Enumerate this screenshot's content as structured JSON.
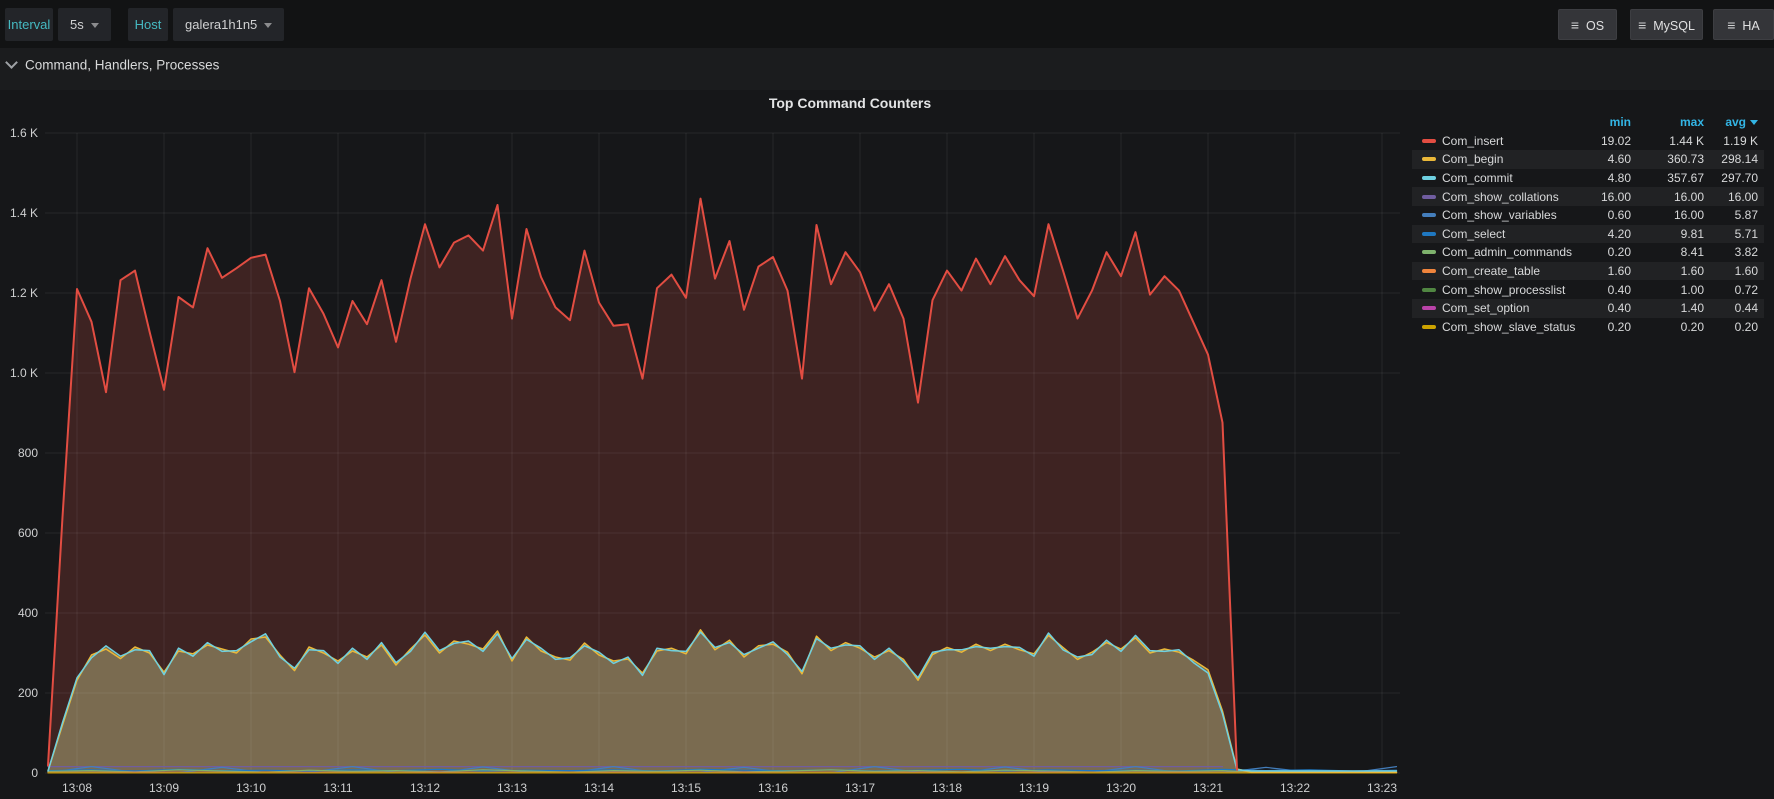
{
  "topbar": {
    "interval_label": "Interval",
    "interval_value": "5s",
    "host_label": "Host",
    "host_value": "galera1h1n5",
    "menu_buttons": [
      "OS",
      "MySQL",
      "HA"
    ]
  },
  "section": {
    "title": "Command, Handlers, Processes"
  },
  "panel": {
    "title": "Top Command Counters"
  },
  "legend": {
    "headers": [
      "min",
      "max",
      "avg"
    ],
    "sort_column": "avg"
  },
  "chart_data": {
    "type": "area",
    "title": "Top Command Counters",
    "grid": true,
    "legend_position": "right-table",
    "x_axis": {
      "tick_labels": [
        "13:08",
        "13:09",
        "13:10",
        "13:11",
        "13:12",
        "13:13",
        "13:14",
        "13:15",
        "13:16",
        "13:17",
        "13:18",
        "13:19",
        "13:20",
        "13:21",
        "13:22",
        "13:23"
      ],
      "tick_interval_s": 60
    },
    "y_axis": {
      "min": 0,
      "max": 1600,
      "tick_labels": [
        "0",
        "200",
        "400",
        "600",
        "800",
        "1.0 K",
        "1.2 K",
        "1.4 K",
        "1.6 K"
      ]
    },
    "series": [
      {
        "name": "Com_insert",
        "color": "#e24d42",
        "fill": "#3e2322",
        "legend": {
          "min": "19.02",
          "max": "1.44 K",
          "avg": "1.19 K"
        },
        "interval_s": 10,
        "start_s": -20,
        "values": [
          19,
          640,
          1210,
          1128,
          952,
          1232,
          1256,
          1104,
          958,
          1190,
          1164,
          1312,
          1238,
          1262,
          1288,
          1296,
          1180,
          1002,
          1212,
          1148,
          1064,
          1180,
          1122,
          1232,
          1078,
          1236,
          1372,
          1264,
          1326,
          1344,
          1306,
          1420,
          1136,
          1360,
          1240,
          1164,
          1132,
          1306,
          1176,
          1118,
          1122,
          986,
          1212,
          1246,
          1188,
          1436,
          1236,
          1330,
          1158,
          1266,
          1290,
          1206,
          986,
          1370,
          1222,
          1302,
          1252,
          1156,
          1222,
          1136,
          926,
          1182,
          1256,
          1206,
          1286,
          1222,
          1292,
          1232,
          1192,
          1372,
          1256,
          1136,
          1206,
          1302,
          1242,
          1352,
          1196,
          1242,
          1206,
          1126,
          1046,
          876,
          8,
          null,
          null,
          null,
          null,
          null,
          null,
          null,
          null,
          null,
          null,
          null,
          null
        ]
      },
      {
        "name": "Com_begin",
        "color": "#eab839",
        "fill": "#77684e",
        "legend": {
          "min": "4.60",
          "max": "360.73",
          "avg": "298.14"
        },
        "interval_s": 10,
        "start_s": -20,
        "values": [
          5,
          120,
          232,
          295,
          310,
          286,
          315,
          300,
          252,
          305,
          298,
          320,
          310,
          300,
          335,
          340,
          295,
          256,
          315,
          300,
          280,
          305,
          290,
          320,
          270,
          310,
          345,
          300,
          330,
          322,
          310,
          355,
          280,
          340,
          305,
          290,
          282,
          325,
          295,
          280,
          285,
          250,
          305,
          312,
          298,
          358,
          308,
          332,
          290,
          318,
          322,
          302,
          248,
          342,
          306,
          326,
          312,
          290,
          306,
          284,
          232,
          296,
          314,
          302,
          322,
          306,
          322,
          308,
          298,
          344,
          314,
          284,
          302,
          326,
          310,
          338,
          300,
          310,
          302,
          282,
          258,
          155,
          10,
          1.5,
          1.5,
          1.5,
          1.5,
          1.5,
          1.5,
          1.5,
          1.5,
          1.5,
          1.5,
          1.5
        ]
      },
      {
        "name": "Com_commit",
        "color": "#6ed0e0",
        "fill": "#7a6b50",
        "legend": {
          "min": "4.80",
          "max": "357.67",
          "avg": "297.70"
        },
        "interval_s": 10,
        "start_s": -20,
        "values": [
          5,
          126,
          238,
          288,
          318,
          292,
          308,
          306,
          246,
          312,
          292,
          326,
          304,
          306,
          328,
          348,
          290,
          262,
          308,
          306,
          274,
          312,
          284,
          326,
          276,
          304,
          352,
          306,
          324,
          330,
          304,
          348,
          286,
          334,
          312,
          284,
          288,
          318,
          302,
          274,
          290,
          244,
          312,
          306,
          304,
          352,
          314,
          326,
          296,
          312,
          328,
          296,
          254,
          336,
          312,
          320,
          318,
          284,
          312,
          278,
          238,
          302,
          308,
          308,
          316,
          312,
          316,
          314,
          292,
          350,
          308,
          290,
          296,
          332,
          304,
          344,
          306,
          304,
          308,
          276,
          250,
          148,
          8,
          5,
          5,
          5,
          5,
          5,
          5,
          5,
          5,
          5,
          5,
          5
        ]
      },
      {
        "name": "Com_show_collations",
        "color": "#705da0",
        "fill": null,
        "legend": {
          "min": "16.00",
          "max": "16.00",
          "avg": "16.00"
        },
        "interval_s": 30,
        "start_s": -20,
        "values": [
          16,
          16,
          16,
          16,
          16,
          16,
          16,
          16,
          16,
          16,
          16,
          16,
          16,
          16,
          16,
          16,
          16,
          16,
          16,
          16,
          16,
          16,
          16,
          16,
          16,
          16,
          16,
          16,
          null,
          null,
          null,
          null
        ]
      },
      {
        "name": "Com_show_variables",
        "color": "#447ebc",
        "fill": null,
        "legend": {
          "min": "0.60",
          "max": "16.00",
          "avg": "5.87"
        },
        "interval_s": 30,
        "start_s": -20,
        "values": [
          1,
          16,
          2,
          1,
          14,
          1,
          2,
          16,
          1,
          1,
          15,
          2,
          1,
          16,
          1,
          2,
          14,
          1,
          1,
          16,
          2,
          1,
          15,
          1,
          2,
          16,
          1,
          1,
          14,
          2,
          1,
          16
        ]
      },
      {
        "name": "Com_select",
        "color": "#1f78c1",
        "fill": null,
        "legend": {
          "min": "4.20",
          "max": "9.81",
          "avg": "5.71"
        },
        "interval_s": 30,
        "start_s": -20,
        "values": [
          6,
          8,
          5,
          9,
          6,
          7,
          5,
          8,
          6,
          9,
          5,
          7,
          6,
          8,
          5,
          9,
          7,
          6,
          8,
          5,
          7,
          9,
          5,
          8,
          6,
          7,
          5,
          9,
          6,
          8,
          5,
          7
        ]
      },
      {
        "name": "Com_admin_commands",
        "color": "#7eb26d",
        "fill": null,
        "legend": {
          "min": "0.20",
          "max": "8.41",
          "avg": "3.82"
        },
        "interval_s": 30,
        "start_s": -20,
        "values": [
          4,
          6,
          3,
          8,
          5,
          2,
          7,
          4,
          6,
          3,
          8,
          5,
          2,
          6,
          4,
          7,
          3,
          5,
          8,
          4,
          6,
          3,
          7,
          5,
          2,
          6,
          4,
          6,
          0.2,
          0.2,
          0.2,
          0.2
        ]
      },
      {
        "name": "Com_create_table",
        "color": "#ef843c",
        "fill": null,
        "legend": {
          "min": "1.60",
          "max": "1.60",
          "avg": "1.60"
        },
        "interval_s": 30,
        "start_s": -20,
        "values": [
          1.6,
          1.6,
          1.6,
          1.6,
          1.6,
          1.6,
          1.6,
          1.6,
          1.6,
          1.6,
          1.6,
          1.6,
          1.6,
          1.6,
          1.6,
          1.6,
          1.6,
          1.6,
          1.6,
          1.6,
          1.6,
          1.6,
          1.6,
          1.6,
          1.6,
          1.6,
          1.6,
          1.6,
          1.6,
          1.6,
          1.6,
          1.6
        ]
      },
      {
        "name": "Com_show_processlist",
        "color": "#508642",
        "fill": null,
        "legend": {
          "min": "0.40",
          "max": "1.00",
          "avg": "0.72"
        },
        "interval_s": 30,
        "start_s": -20,
        "values": [
          0.7,
          0.8,
          0.6,
          0.9,
          0.7,
          0.6,
          0.8,
          0.7,
          0.9,
          0.6,
          0.7,
          0.8,
          0.6,
          0.7,
          0.9,
          0.8,
          0.6,
          0.7,
          0.8,
          0.9,
          0.7,
          0.6,
          0.8,
          0.7,
          0.6,
          0.9,
          0.7,
          0.8,
          0.6,
          0.7,
          0.8,
          0.7
        ]
      },
      {
        "name": "Com_set_option",
        "color": "#ba43a9",
        "fill": null,
        "legend": {
          "min": "0.40",
          "max": "1.40",
          "avg": "0.44"
        },
        "interval_s": 30,
        "start_s": -20,
        "values": [
          0.4,
          0.4,
          1.4,
          0.4,
          0.4,
          0.4,
          1.2,
          0.4,
          0.4,
          1.4,
          0.4,
          0.4,
          0.4,
          1.3,
          0.4,
          0.4,
          1.4,
          0.4,
          0.4,
          0.4,
          1.2,
          0.4,
          0.4,
          1.4,
          0.4,
          0.4,
          1.3,
          0.4,
          0.4,
          0.4,
          0.4,
          0.4
        ]
      },
      {
        "name": "Com_show_slave_status",
        "color": "#cca300",
        "fill": null,
        "legend": {
          "min": "0.20",
          "max": "0.20",
          "avg": "0.20"
        },
        "interval_s": 30,
        "start_s": -20,
        "values": [
          0.2,
          0.2,
          0.2,
          0.2,
          0.2,
          0.2,
          0.2,
          0.2,
          0.2,
          0.2,
          0.2,
          0.2,
          0.2,
          0.2,
          0.2,
          0.2,
          0.2,
          0.2,
          0.2,
          0.2,
          0.2,
          0.2,
          0.2,
          0.2,
          0.2,
          0.2,
          0.2,
          0.2,
          0.2,
          0.2,
          0.2,
          0.2
        ]
      }
    ]
  }
}
